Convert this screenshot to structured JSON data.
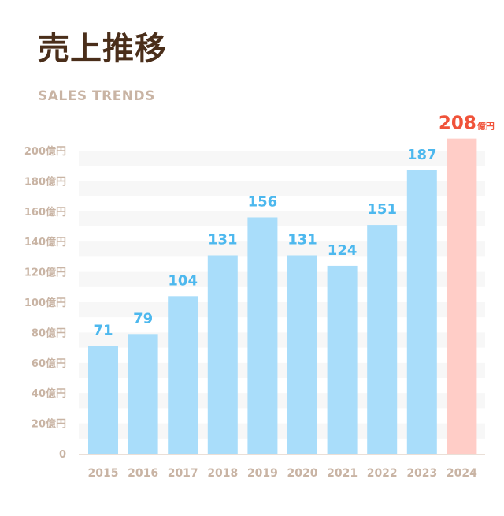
{
  "header": {
    "title": "売上推移",
    "subtitle": "SALES TRENDS"
  },
  "colors": {
    "title": "#4a2e1a",
    "muted_text": "#c9b4a4",
    "bar": "#a9ddfa",
    "bar_label": "#4db8ee",
    "highlight_bar": "#ffcdc7",
    "highlight_label": "#f0533a",
    "grid_band": "#f7f7f7",
    "baseline": "#eadfd7"
  },
  "chart_data": {
    "type": "bar",
    "title": "売上推移",
    "subtitle": "SALES TRENDS",
    "categories": [
      "2015",
      "2016",
      "2017",
      "2018",
      "2019",
      "2020",
      "2021",
      "2022",
      "2023",
      "2024"
    ],
    "values": [
      71,
      79,
      104,
      131,
      156,
      131,
      124,
      151,
      187,
      208
    ],
    "value_labels": [
      "71",
      "79",
      "104",
      "131",
      "156",
      "131",
      "124",
      "151",
      "187",
      "208"
    ],
    "highlight_index": 9,
    "highlight_unit": "億円",
    "ylim": [
      0,
      200
    ],
    "yticks": [
      0,
      20,
      40,
      60,
      80,
      100,
      120,
      140,
      160,
      180,
      200
    ],
    "ytick_labels": [
      "0",
      "20億円",
      "40億円",
      "60億円",
      "80億円",
      "100億円",
      "120億円",
      "140億円",
      "160億円",
      "180億円",
      "200億円"
    ],
    "grid": true,
    "legend": "none"
  }
}
